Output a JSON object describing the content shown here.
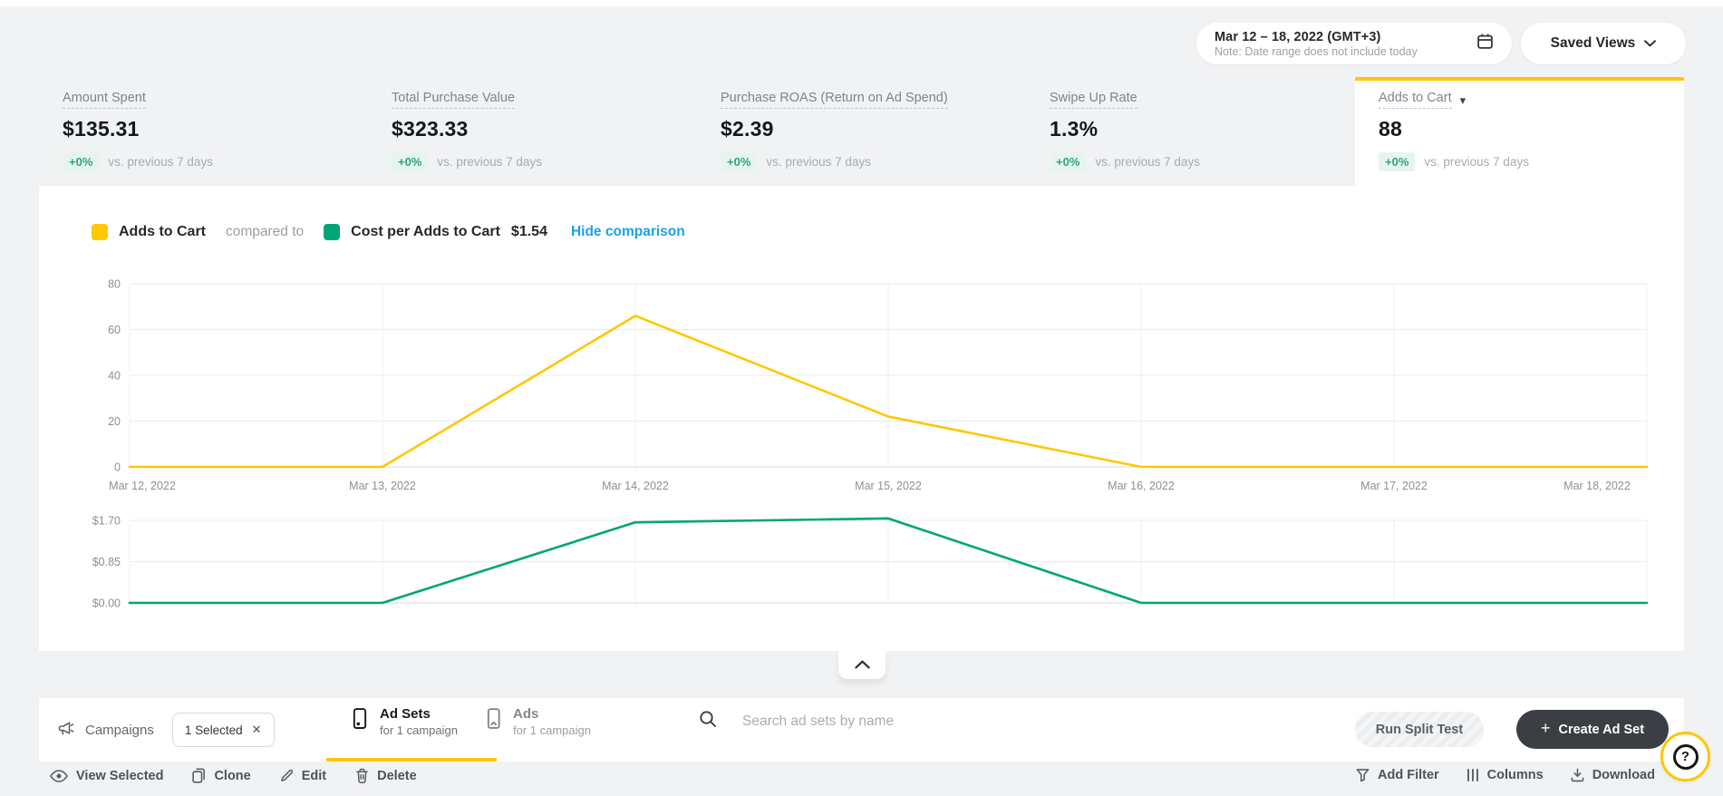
{
  "header": {
    "date_range": "Mar 12 – 18, 2022 (GMT+3)",
    "date_note": "Note: Date range does not include today",
    "saved_views": "Saved Views"
  },
  "metrics": {
    "delta": "+0%",
    "vs_note": "vs. previous 7 days",
    "cards": [
      {
        "label": "Amount Spent",
        "value": "$135.31"
      },
      {
        "label": "Total Purchase Value",
        "value": "$323.33"
      },
      {
        "label": "Purchase ROAS (Return on Ad Spend)",
        "value": "$2.39"
      },
      {
        "label": "Swipe Up Rate",
        "value": "1.3%"
      },
      {
        "label": "Adds to Cart",
        "value": "88"
      }
    ]
  },
  "legend": {
    "primary": "Adds to Cart",
    "compared_to": "compared to",
    "secondary": "Cost per Adds to Cart",
    "secondary_value": "$1.54",
    "toggle": "Hide comparison"
  },
  "chart_data": [
    {
      "type": "line",
      "name": "Adds to Cart",
      "color": "#FFC700",
      "x": [
        "Mar 12, 2022",
        "Mar 13, 2022",
        "Mar 14, 2022",
        "Mar 15, 2022",
        "Mar 16, 2022",
        "Mar 17, 2022",
        "Mar 18, 2022"
      ],
      "values": [
        0,
        0,
        66,
        22,
        0,
        0,
        0
      ],
      "ylim": [
        0,
        80
      ],
      "yticks": [
        0,
        20,
        40,
        60,
        80
      ],
      "ytick_labels": [
        "0",
        "20",
        "40",
        "60",
        "80"
      ],
      "grid": true,
      "show_x_labels": true
    },
    {
      "type": "line",
      "name": "Cost per Adds to Cart",
      "color": "#00A577",
      "x": [
        "Mar 12, 2022",
        "Mar 13, 2022",
        "Mar 14, 2022",
        "Mar 15, 2022",
        "Mar 16, 2022",
        "Mar 17, 2022",
        "Mar 18, 2022"
      ],
      "values": [
        0,
        0,
        1.66,
        1.74,
        0,
        0,
        0
      ],
      "ylim": [
        0,
        1.7
      ],
      "yticks": [
        0,
        0.85,
        1.7
      ],
      "ytick_labels": [
        "$0.00",
        "$0.85",
        "$1.70"
      ],
      "grid": true,
      "show_x_labels": false
    }
  ],
  "tabs": {
    "campaigns": "Campaigns",
    "selected_chip": "1 Selected",
    "adsets_title": "Ad Sets",
    "adsets_sub": "for 1 campaign",
    "ads_title": "Ads",
    "ads_sub": "for 1 campaign"
  },
  "search": {
    "placeholder": "Search ad sets by name"
  },
  "actions": {
    "run_split_test": "Run Split Test",
    "create_ad_set": "Create Ad Set"
  },
  "toolbar": {
    "view_selected": "View Selected",
    "clone": "Clone",
    "edit": "Edit",
    "delete": "Delete",
    "add_filter": "Add Filter",
    "columns": "Columns",
    "download": "Download"
  },
  "icons": {
    "caret_down": "▾",
    "close": "✕",
    "plus": "+",
    "help": "?"
  },
  "colors": {
    "accent_yellow": "#FFC700",
    "accent_green": "#00A577",
    "link_blue": "#1AA2E2",
    "positive_green": "#2BA57B",
    "panel_white": "#FFFFFF",
    "page_gray": "#F1F2F4"
  }
}
